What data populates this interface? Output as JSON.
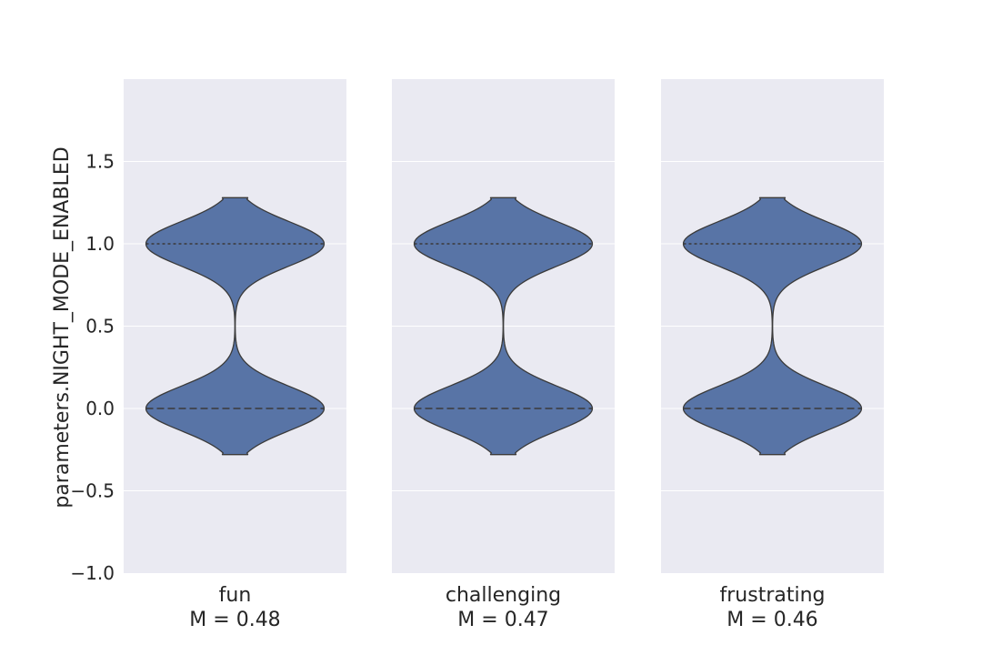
{
  "chart_data": {
    "type": "violin",
    "ylabel": "parameters.NIGHT_MODE_ENABLED",
    "ylim": [
      -1.0,
      2.0
    ],
    "yticks": [
      -1.0,
      -0.5,
      0.0,
      0.5,
      1.0,
      1.5
    ],
    "ytick_labels": [
      "−1.0",
      "−0.5",
      "0.0",
      "0.5",
      "1.0",
      "1.5"
    ],
    "grid": true,
    "inner": "quartile",
    "panels": [
      {
        "label": "fun",
        "mean_label": "M = 0.48",
        "mean": 0.48,
        "support": [
          -0.28,
          1.28
        ],
        "quartiles": {
          "q1": 0.0,
          "median": 0.0,
          "q3": 1.0
        }
      },
      {
        "label": "challenging",
        "mean_label": "M = 0.47",
        "mean": 0.47,
        "support": [
          -0.28,
          1.28
        ],
        "quartiles": {
          "q1": 0.0,
          "median": 0.0,
          "q3": 1.0
        }
      },
      {
        "label": "frustrating",
        "mean_label": "M = 0.46",
        "mean": 0.46,
        "support": [
          -0.28,
          1.28
        ],
        "quartiles": {
          "q1": 0.0,
          "median": 0.0,
          "q3": 1.0
        }
      }
    ],
    "colors": {
      "violin_fill": "#5874a6",
      "violin_stroke": "#3a3a3a",
      "panel_background": "#eaeaf2",
      "grid": "#ffffff",
      "quartile_line": "#3a3a3a"
    }
  }
}
